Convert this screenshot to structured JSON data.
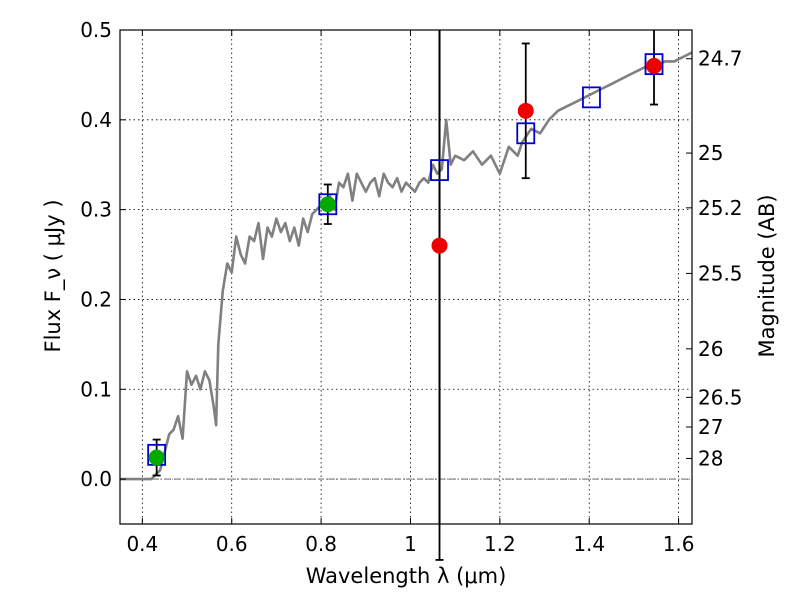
{
  "chart_data": {
    "type": "scatter",
    "title": "",
    "xlabel": "Wavelength  λ (μm)",
    "ylabel": "Flux  F_ν  ( μJy )",
    "y2label": "Magnitude (AB)",
    "xlim": [
      0.35,
      1.63
    ],
    "ylim": [
      -0.05,
      0.5
    ],
    "grid": true,
    "xticks": [
      0.4,
      0.6,
      0.8,
      1.0,
      1.2,
      1.4,
      1.6
    ],
    "xtick_labels": [
      "0.4",
      "0.6",
      "0.8",
      "1",
      "1.2",
      "1.4",
      "1.6"
    ],
    "yticks": [
      0.0,
      0.1,
      0.2,
      0.3,
      0.4,
      0.5
    ],
    "ytick_labels": [
      "0.0",
      "0.1",
      "0.2",
      "0.3",
      "0.4",
      "0.5"
    ],
    "mag_ticks": [
      {
        "label": "24.7",
        "flux": 0.468
      },
      {
        "label": "25",
        "flux": 0.363
      },
      {
        "label": "25.2",
        "flux": 0.302
      },
      {
        "label": "25.5",
        "flux": 0.229
      },
      {
        "label": "26",
        "flux": 0.145
      },
      {
        "label": "26.5",
        "flux": 0.091
      },
      {
        "label": "27",
        "flux": 0.058
      },
      {
        "label": "28",
        "flux": 0.023
      }
    ],
    "zero_line": 0.0,
    "template_sed": {
      "color": "#808080",
      "x": [
        0.35,
        0.42,
        0.43,
        0.44,
        0.45,
        0.46,
        0.47,
        0.48,
        0.49,
        0.5,
        0.51,
        0.52,
        0.53,
        0.54,
        0.55,
        0.56,
        0.565,
        0.57,
        0.58,
        0.59,
        0.6,
        0.61,
        0.62,
        0.63,
        0.64,
        0.65,
        0.66,
        0.67,
        0.68,
        0.69,
        0.7,
        0.71,
        0.72,
        0.73,
        0.74,
        0.75,
        0.76,
        0.77,
        0.78,
        0.79,
        0.8,
        0.81,
        0.82,
        0.83,
        0.84,
        0.85,
        0.86,
        0.87,
        0.88,
        0.89,
        0.9,
        0.91,
        0.92,
        0.93,
        0.94,
        0.95,
        0.96,
        0.97,
        0.98,
        0.99,
        1.0,
        1.01,
        1.02,
        1.03,
        1.04,
        1.05,
        1.06,
        1.07,
        1.08,
        1.09,
        1.1,
        1.12,
        1.14,
        1.16,
        1.18,
        1.2,
        1.22,
        1.24,
        1.25,
        1.27,
        1.29,
        1.31,
        1.33,
        1.35,
        1.37,
        1.39,
        1.41,
        1.43,
        1.45,
        1.47,
        1.49,
        1.51,
        1.53,
        1.55,
        1.57,
        1.59,
        1.61,
        1.63
      ],
      "y": [
        0.0,
        0.0,
        0.005,
        0.01,
        0.03,
        0.05,
        0.055,
        0.07,
        0.045,
        0.12,
        0.105,
        0.115,
        0.1,
        0.12,
        0.11,
        0.08,
        0.06,
        0.15,
        0.21,
        0.24,
        0.23,
        0.27,
        0.25,
        0.24,
        0.27,
        0.265,
        0.285,
        0.245,
        0.28,
        0.27,
        0.29,
        0.275,
        0.285,
        0.265,
        0.28,
        0.26,
        0.29,
        0.275,
        0.295,
        0.3,
        0.305,
        0.305,
        0.315,
        0.3,
        0.33,
        0.325,
        0.34,
        0.31,
        0.34,
        0.33,
        0.32,
        0.33,
        0.335,
        0.315,
        0.34,
        0.33,
        0.325,
        0.335,
        0.32,
        0.33,
        0.325,
        0.32,
        0.33,
        0.335,
        0.33,
        0.35,
        0.34,
        0.345,
        0.4,
        0.35,
        0.36,
        0.355,
        0.365,
        0.35,
        0.36,
        0.34,
        0.37,
        0.36,
        0.375,
        0.39,
        0.385,
        0.4,
        0.41,
        0.415,
        0.42,
        0.425,
        0.43,
        0.435,
        0.44,
        0.445,
        0.45,
        0.455,
        0.46,
        0.46,
        0.465,
        0.465,
        0.47,
        0.475
      ]
    },
    "model_points": {
      "color": "#0000cc",
      "x": [
        0.432,
        0.815,
        1.065,
        1.258,
        1.405,
        1.545
      ],
      "y": [
        0.027,
        0.306,
        0.344,
        0.385,
        0.425,
        0.462
      ]
    },
    "detections": {
      "color": "#00aa00",
      "x": [
        0.432,
        0.815
      ],
      "y": [
        0.024,
        0.306
      ],
      "yerr": [
        0.02,
        0.022
      ]
    },
    "photometry": {
      "color": "#ee0000",
      "x": [
        1.065,
        1.258,
        1.545
      ],
      "y": [
        0.26,
        0.41,
        0.46
      ],
      "yerr": [
        0.35,
        0.075,
        0.043
      ]
    },
    "vertical_line_x": 1.065
  }
}
